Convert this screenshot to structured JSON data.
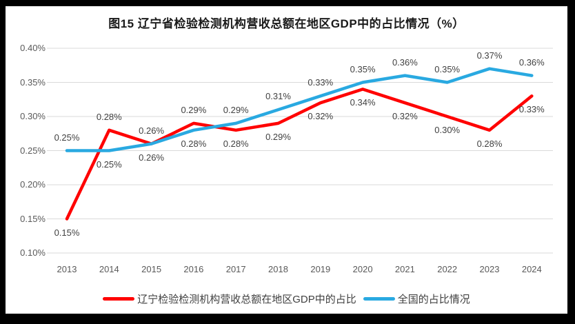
{
  "frame_color": "#000000",
  "title": "图15 辽宁省检验检测机构营收总额在地区GDP中的占比情况（%）",
  "chart_data": {
    "type": "line",
    "title": "图15 辽宁省检验检测机构营收总额在地区GDP中的占比情况（%）",
    "x": [
      "2013",
      "2014",
      "2015",
      "2016",
      "2017",
      "2018",
      "2019",
      "2020",
      "2021",
      "2022",
      "2023",
      "2024"
    ],
    "xlabel": "",
    "ylabel": "",
    "ylim": [
      0.1,
      0.4
    ],
    "ytick_labels": [
      "0.40%",
      "0.35%",
      "0.30%",
      "0.25%",
      "0.20%",
      "0.15%",
      "0.10%"
    ],
    "grid": true,
    "gridline_color": "#D9D9D9",
    "axis_text_color": "#595959",
    "label_text_color": "#404040",
    "legend_position": "bottom",
    "series": [
      {
        "id": "liaoning",
        "name": "辽宁检验检测机构营收总额在地区GDP中的占比",
        "color": "#FF0000",
        "values": [
          0.15,
          0.28,
          0.26,
          0.29,
          0.28,
          0.29,
          0.32,
          0.34,
          0.32,
          0.3,
          0.28,
          0.33
        ],
        "point_labels": [
          "0.15%",
          "0.28%",
          "0.26%",
          "0.29%",
          "0.28%",
          "0.29%",
          "0.32%",
          "0.34%",
          "0.32%",
          "0.30%",
          "0.28%",
          "0.33%"
        ]
      },
      {
        "id": "national",
        "name": "全国的占比情况",
        "color": "#29A9E1",
        "values": [
          0.25,
          0.25,
          0.26,
          0.28,
          0.29,
          0.31,
          0.33,
          0.35,
          0.36,
          0.35,
          0.37,
          0.36
        ],
        "point_labels": [
          "0.25%",
          "0.25%",
          "0.26%",
          "0.28%",
          "0.29%",
          "0.31%",
          "0.33%",
          "0.35%",
          "0.36%",
          "0.35%",
          "0.37%",
          "0.36%"
        ]
      }
    ]
  }
}
